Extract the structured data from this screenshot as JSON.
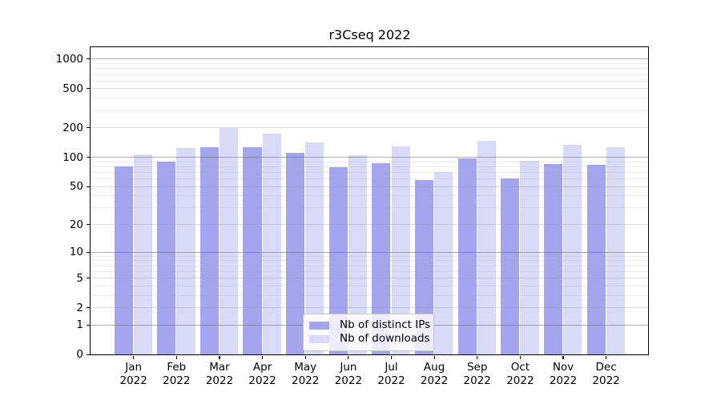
{
  "chart_data": {
    "type": "bar",
    "title": "r3Cseq 2022",
    "categories": [
      "Jan 2022",
      "Feb 2022",
      "Mar 2022",
      "Apr 2022",
      "May 2022",
      "Jun 2022",
      "Jul 2022",
      "Aug 2022",
      "Sep 2022",
      "Oct 2022",
      "Nov 2022",
      "Dec 2022"
    ],
    "series": [
      {
        "name": "Nb of distinct IPs",
        "color": "#a5a5ef",
        "values": [
          80,
          89,
          127,
          125,
          111,
          79,
          86,
          58,
          96,
          60,
          85,
          84
        ]
      },
      {
        "name": "Nb of downloads",
        "color": "#d9d9f8",
        "values": [
          106,
          124,
          198,
          173,
          140,
          105,
          129,
          70,
          147,
          91,
          133,
          127
        ]
      }
    ],
    "xlabel": "",
    "ylabel": "",
    "y_scale": "log1p",
    "ylim": [
      0,
      1310
    ],
    "y_ticks": [
      0,
      1,
      2,
      5,
      10,
      20,
      50,
      100,
      200,
      500,
      1000
    ],
    "major_gridlines": [
      1,
      10,
      100,
      1000
    ],
    "light_gridlines": [
      2,
      5,
      20,
      50,
      200,
      500
    ],
    "minor_gridlines": [
      3,
      4,
      6,
      7,
      8,
      9,
      30,
      40,
      60,
      70,
      80,
      90,
      300,
      400,
      600,
      700,
      800,
      900
    ],
    "grid": true,
    "legend_position": "lower-center"
  }
}
